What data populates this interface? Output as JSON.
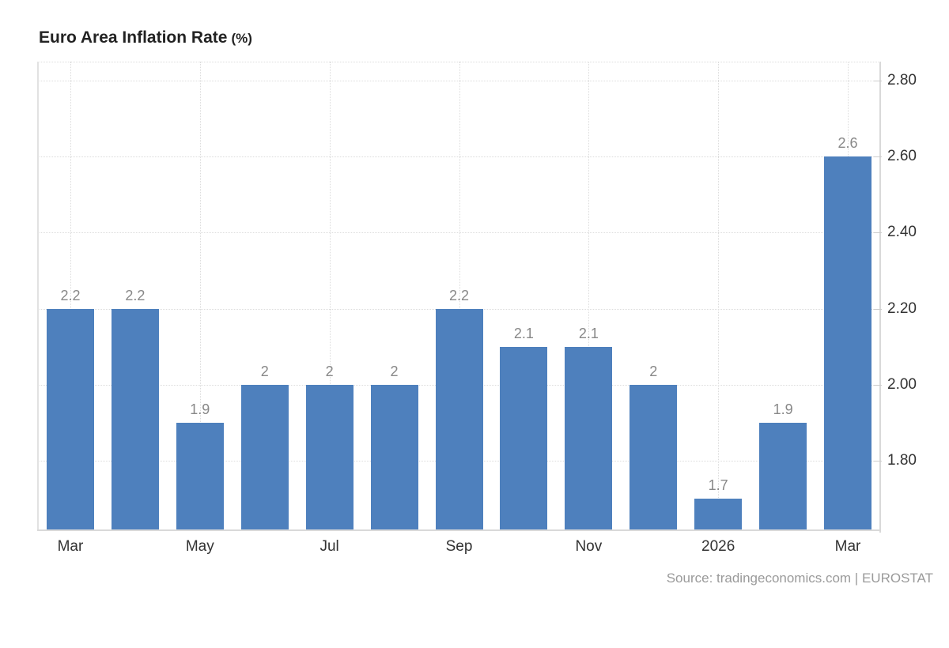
{
  "header": {
    "title": "Euro Area Inflation Rate",
    "title_unit": "(%)"
  },
  "footer": {
    "source": "Source: tradingeconomics.com | EUROSTAT"
  },
  "colors": {
    "bar": "#4e80bd",
    "gridline": "#dcdcdc",
    "axis_line": "#d9d9d9",
    "bar_value_label": "#888888",
    "tick_label": "#333333",
    "title": "#222222",
    "source": "#9a9a9a"
  },
  "chart_data": {
    "type": "bar",
    "title": "Euro Area Inflation Rate (%)",
    "xlabel": "",
    "ylabel": "",
    "values": [
      2.2,
      2.2,
      1.9,
      2,
      2,
      2,
      2.2,
      2.1,
      2.1,
      2,
      1.7,
      1.9,
      2.6
    ],
    "bar_labels": [
      "2.2",
      "2.2",
      "1.9",
      "2",
      "2",
      "2",
      "2.2",
      "2.1",
      "2.1",
      "2",
      "1.7",
      "1.9",
      "2.6"
    ],
    "x_ticks": [
      {
        "index": 0,
        "label": "Mar"
      },
      {
        "index": 2,
        "label": "May"
      },
      {
        "index": 4,
        "label": "Jul"
      },
      {
        "index": 6,
        "label": "Sep"
      },
      {
        "index": 8,
        "label": "Nov"
      },
      {
        "index": 10,
        "label": "2026"
      },
      {
        "index": 12,
        "label": "Mar"
      }
    ],
    "y_ticks": [
      {
        "value": 2.8,
        "label": "2.80"
      },
      {
        "value": 2.6,
        "label": "2.60"
      },
      {
        "value": 2.4,
        "label": "2.40"
      },
      {
        "value": 2.2,
        "label": "2.20"
      },
      {
        "value": 2.0,
        "label": "2.00"
      },
      {
        "value": 1.8,
        "label": "1.80"
      }
    ],
    "ylim": [
      1.615,
      2.85
    ],
    "grid": "dotted",
    "legend": null,
    "y_axis_side": "right",
    "source": "Source: tradingeconomics.com | EUROSTAT"
  }
}
